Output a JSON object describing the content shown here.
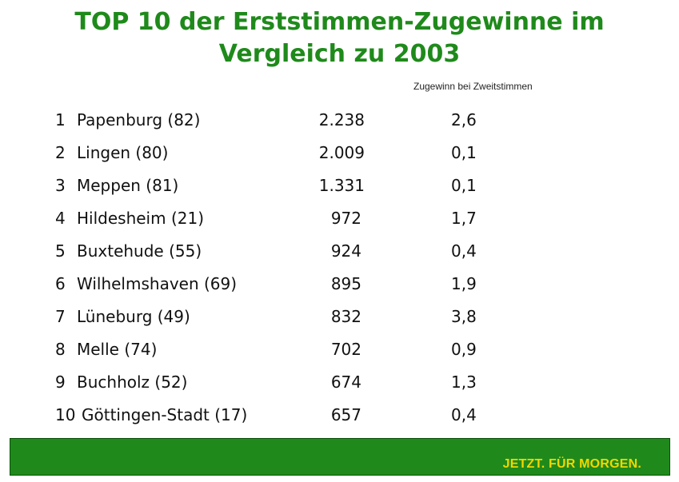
{
  "title": {
    "line1": "TOP 10 der Erststimmen-Zugewinne im",
    "line2": "Vergleich zu 2003"
  },
  "column_header": "Zugewinn bei Zweitstimmen",
  "rows": [
    {
      "rank": "1",
      "name": "Papenburg (82)",
      "votes": "2.238",
      "pct": "2,6"
    },
    {
      "rank": "2",
      "name": "Lingen (80)",
      "votes": "2.009",
      "pct": "0,1"
    },
    {
      "rank": "3",
      "name": "Meppen (81)",
      "votes": "1.331",
      "pct": "0,1"
    },
    {
      "rank": "4",
      "name": "Hildesheim (21)",
      "votes": "972",
      "pct": "1,7"
    },
    {
      "rank": "5",
      "name": "Buxtehude (55)",
      "votes": "924",
      "pct": "0,4"
    },
    {
      "rank": "6",
      "name": "Wilhelmshaven (69)",
      "votes": "895",
      "pct": "1,9"
    },
    {
      "rank": "7",
      "name": "Lüneburg (49)",
      "votes": "832",
      "pct": "3,8"
    },
    {
      "rank": "8",
      "name": "Melle (74)",
      "votes": "702",
      "pct": "0,9"
    },
    {
      "rank": "9",
      "name": "Buchholz (52)",
      "votes": "674",
      "pct": "1,3"
    },
    {
      "rank": "10",
      "name": "Göttingen-Stadt (17)",
      "votes": "657",
      "pct": "0,4"
    }
  ],
  "footer": {
    "slogan": "JETZT. FÜR MORGEN.",
    "color": "#1f8a1b",
    "slogan_color": "#f2d600"
  }
}
